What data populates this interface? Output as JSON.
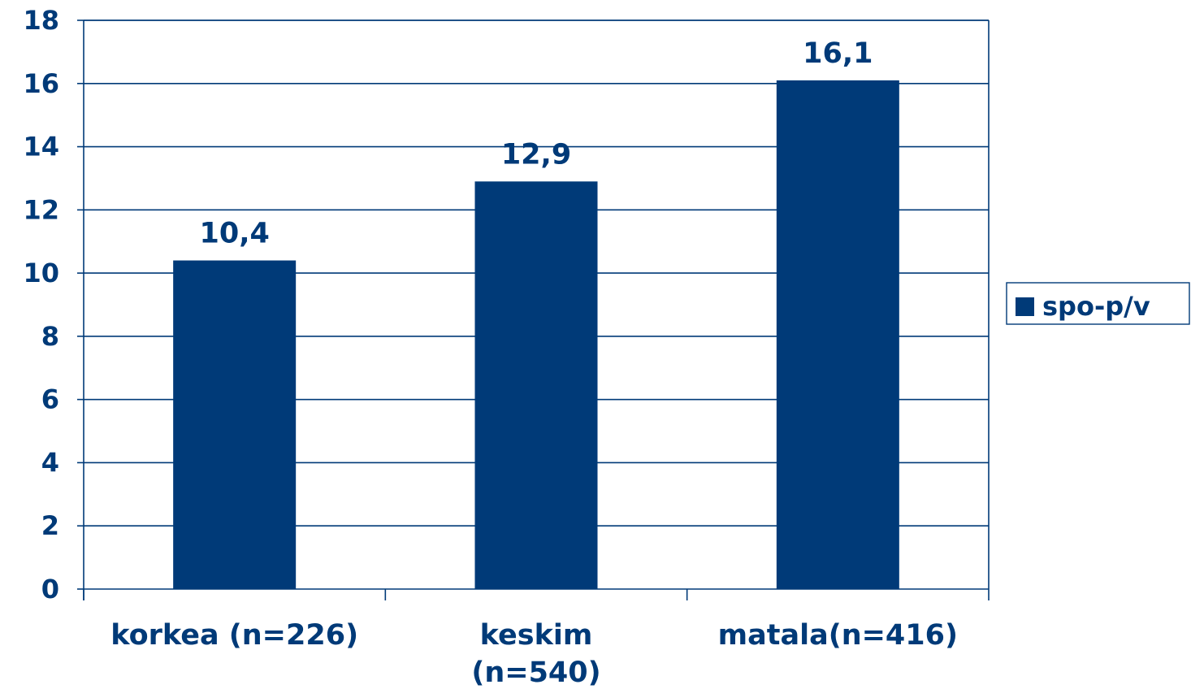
{
  "chart_data": {
    "type": "bar",
    "title": "",
    "xlabel": "",
    "ylabel": "",
    "categories": [
      [
        "korkea (n=226)"
      ],
      [
        "keskim",
        "(n=540)"
      ],
      [
        "matala(n=416)"
      ]
    ],
    "series": [
      {
        "name": "spo-p/v",
        "values": [
          10.4,
          12.9,
          16.1
        ],
        "data_labels": [
          "10,4",
          "12,9",
          "16,1"
        ]
      }
    ],
    "ylim": [
      0,
      18
    ],
    "yticks": [
      "0",
      "2",
      "4",
      "6",
      "8",
      "10",
      "12",
      "14",
      "16",
      "18"
    ],
    "grid": true,
    "legend_position": "right",
    "colors": {
      "bar": "#003a78",
      "axis": "#003a78",
      "text": "#003a78",
      "grid": "#003a78",
      "background": "#ffffff"
    }
  }
}
